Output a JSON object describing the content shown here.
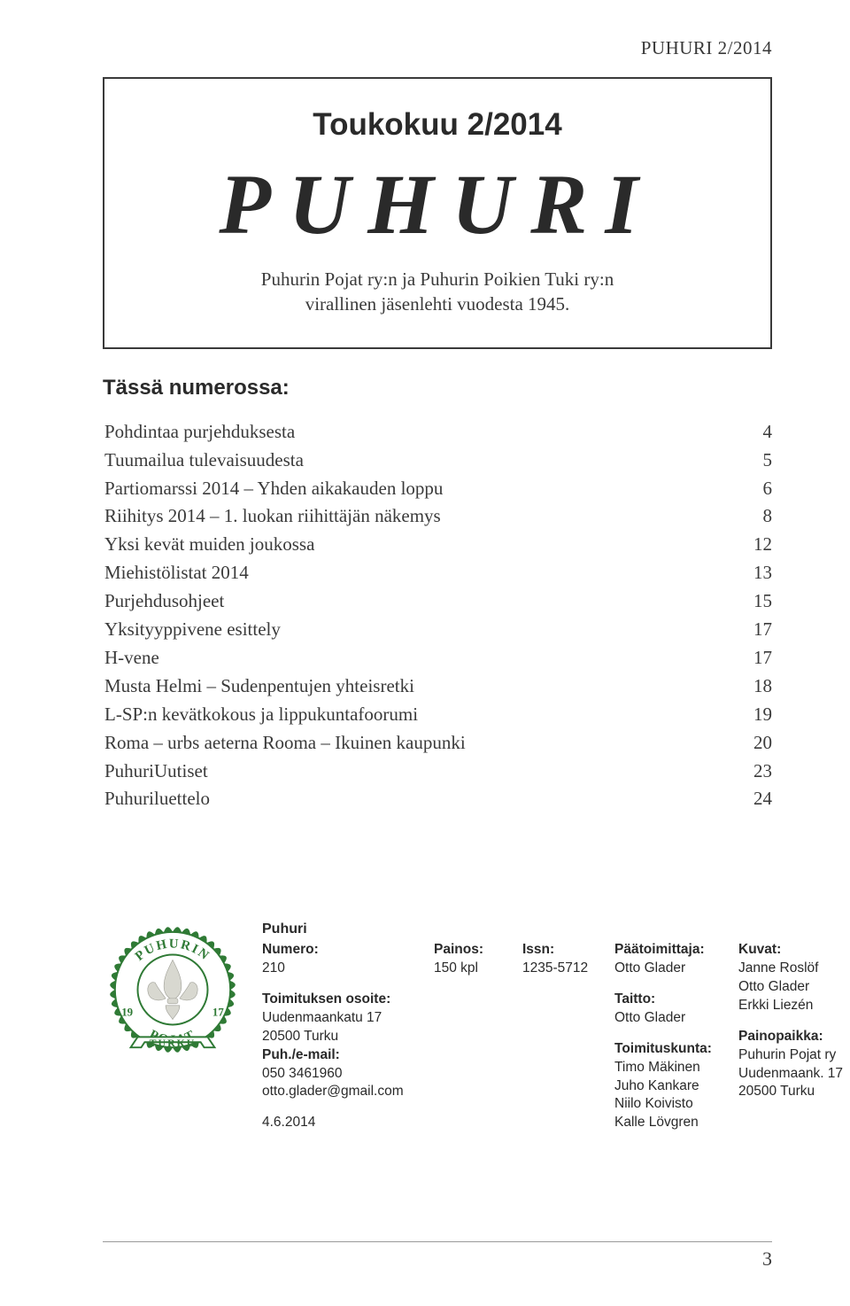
{
  "runningHeader": "PUHURI 2/2014",
  "titleBox": {
    "issue": "Toukokuu 2/2014",
    "brand": "PUHURI",
    "sub1": "Puhurin Pojat ry:n ja Puhurin Poikien Tuki ry:n",
    "sub2": "virallinen jäsenlehti vuodesta 1945."
  },
  "tocTitle": "Tässä numerossa:",
  "toc": [
    {
      "label": "Pohdintaa purjehduksesta",
      "page": "4"
    },
    {
      "label": "Tuumailua tulevaisuudesta",
      "page": "5"
    },
    {
      "label": "Partiomarssi 2014 – Yhden aikakauden loppu",
      "page": "6"
    },
    {
      "label": "Riihitys 2014 – 1. luokan riihittäjän näkemys",
      "page": "8"
    },
    {
      "label": "Yksi kevät muiden joukossa",
      "page": "12"
    },
    {
      "label": "Miehistölistat 2014",
      "page": "13"
    },
    {
      "label": "Purjehdusohjeet",
      "page": "15"
    },
    {
      "label": "Yksityyppivene esittely",
      "page": "17"
    },
    {
      "label": "H-vene",
      "page": "17"
    },
    {
      "label": "Musta Helmi – Sudenpentujen yhteisretki",
      "page": "18"
    },
    {
      "label": "L-SP:n kevätkokous ja lippukuntafoorumi",
      "page": "19"
    },
    {
      "label": "Roma – urbs aeterna  Rooma – Ikuinen kaupunki",
      "page": "20"
    },
    {
      "label": "PuhuriUutiset",
      "page": "23"
    },
    {
      "label": "Puhuriluettelo",
      "page": "24"
    }
  ],
  "emblem": {
    "outerColor": "#2f7a35",
    "innerColor": "#ffffff",
    "embossColor": "#d8d8d0",
    "ringTextTop": "PUHURIN",
    "ringTextBottom": "POJAT",
    "ringLeft": "19",
    "ringRight": "17",
    "bannerText": "TURKU"
  },
  "masthead": {
    "title": "Puhuri",
    "c1": {
      "numeroLabel": "Numero:",
      "numero": "210",
      "toimOsoiteLabel": "Toimituksen osoite:",
      "addr1": "Uudenmaankatu 17",
      "addr2": "20500 Turku",
      "puhLabel": "Puh./e-mail:",
      "phone": "050 3461960",
      "email": "otto.glader@gmail.com",
      "date": "4.6.2014"
    },
    "c2": {
      "painosLabel": "Painos:",
      "painos": "150 kpl"
    },
    "c3": {
      "issnLabel": "Issn:",
      "issn": "1235-5712"
    },
    "c4": {
      "paatoimLabel": "Päätoimittaja:",
      "paatoim": "Otto Glader",
      "taittoLabel": "Taitto:",
      "taitto": "Otto Glader",
      "toimkuntaLabel": "Toimituskunta:",
      "tk1": "Timo Mäkinen",
      "tk2": "Juho Kankare",
      "tk3": "Niilo Koivisto",
      "tk4": "Kalle Lövgren"
    },
    "c5": {
      "kuvatLabel": "Kuvat:",
      "kv1": "Janne Roslöf",
      "kv2": "Otto Glader",
      "kv3": "Erkki Liezén",
      "painopaikkaLabel": "Painopaikka:",
      "pp1": "Puhurin Pojat ry",
      "pp2": "Uudenmaank. 17",
      "pp3": "20500 Turku"
    }
  },
  "pageNumber": "3"
}
